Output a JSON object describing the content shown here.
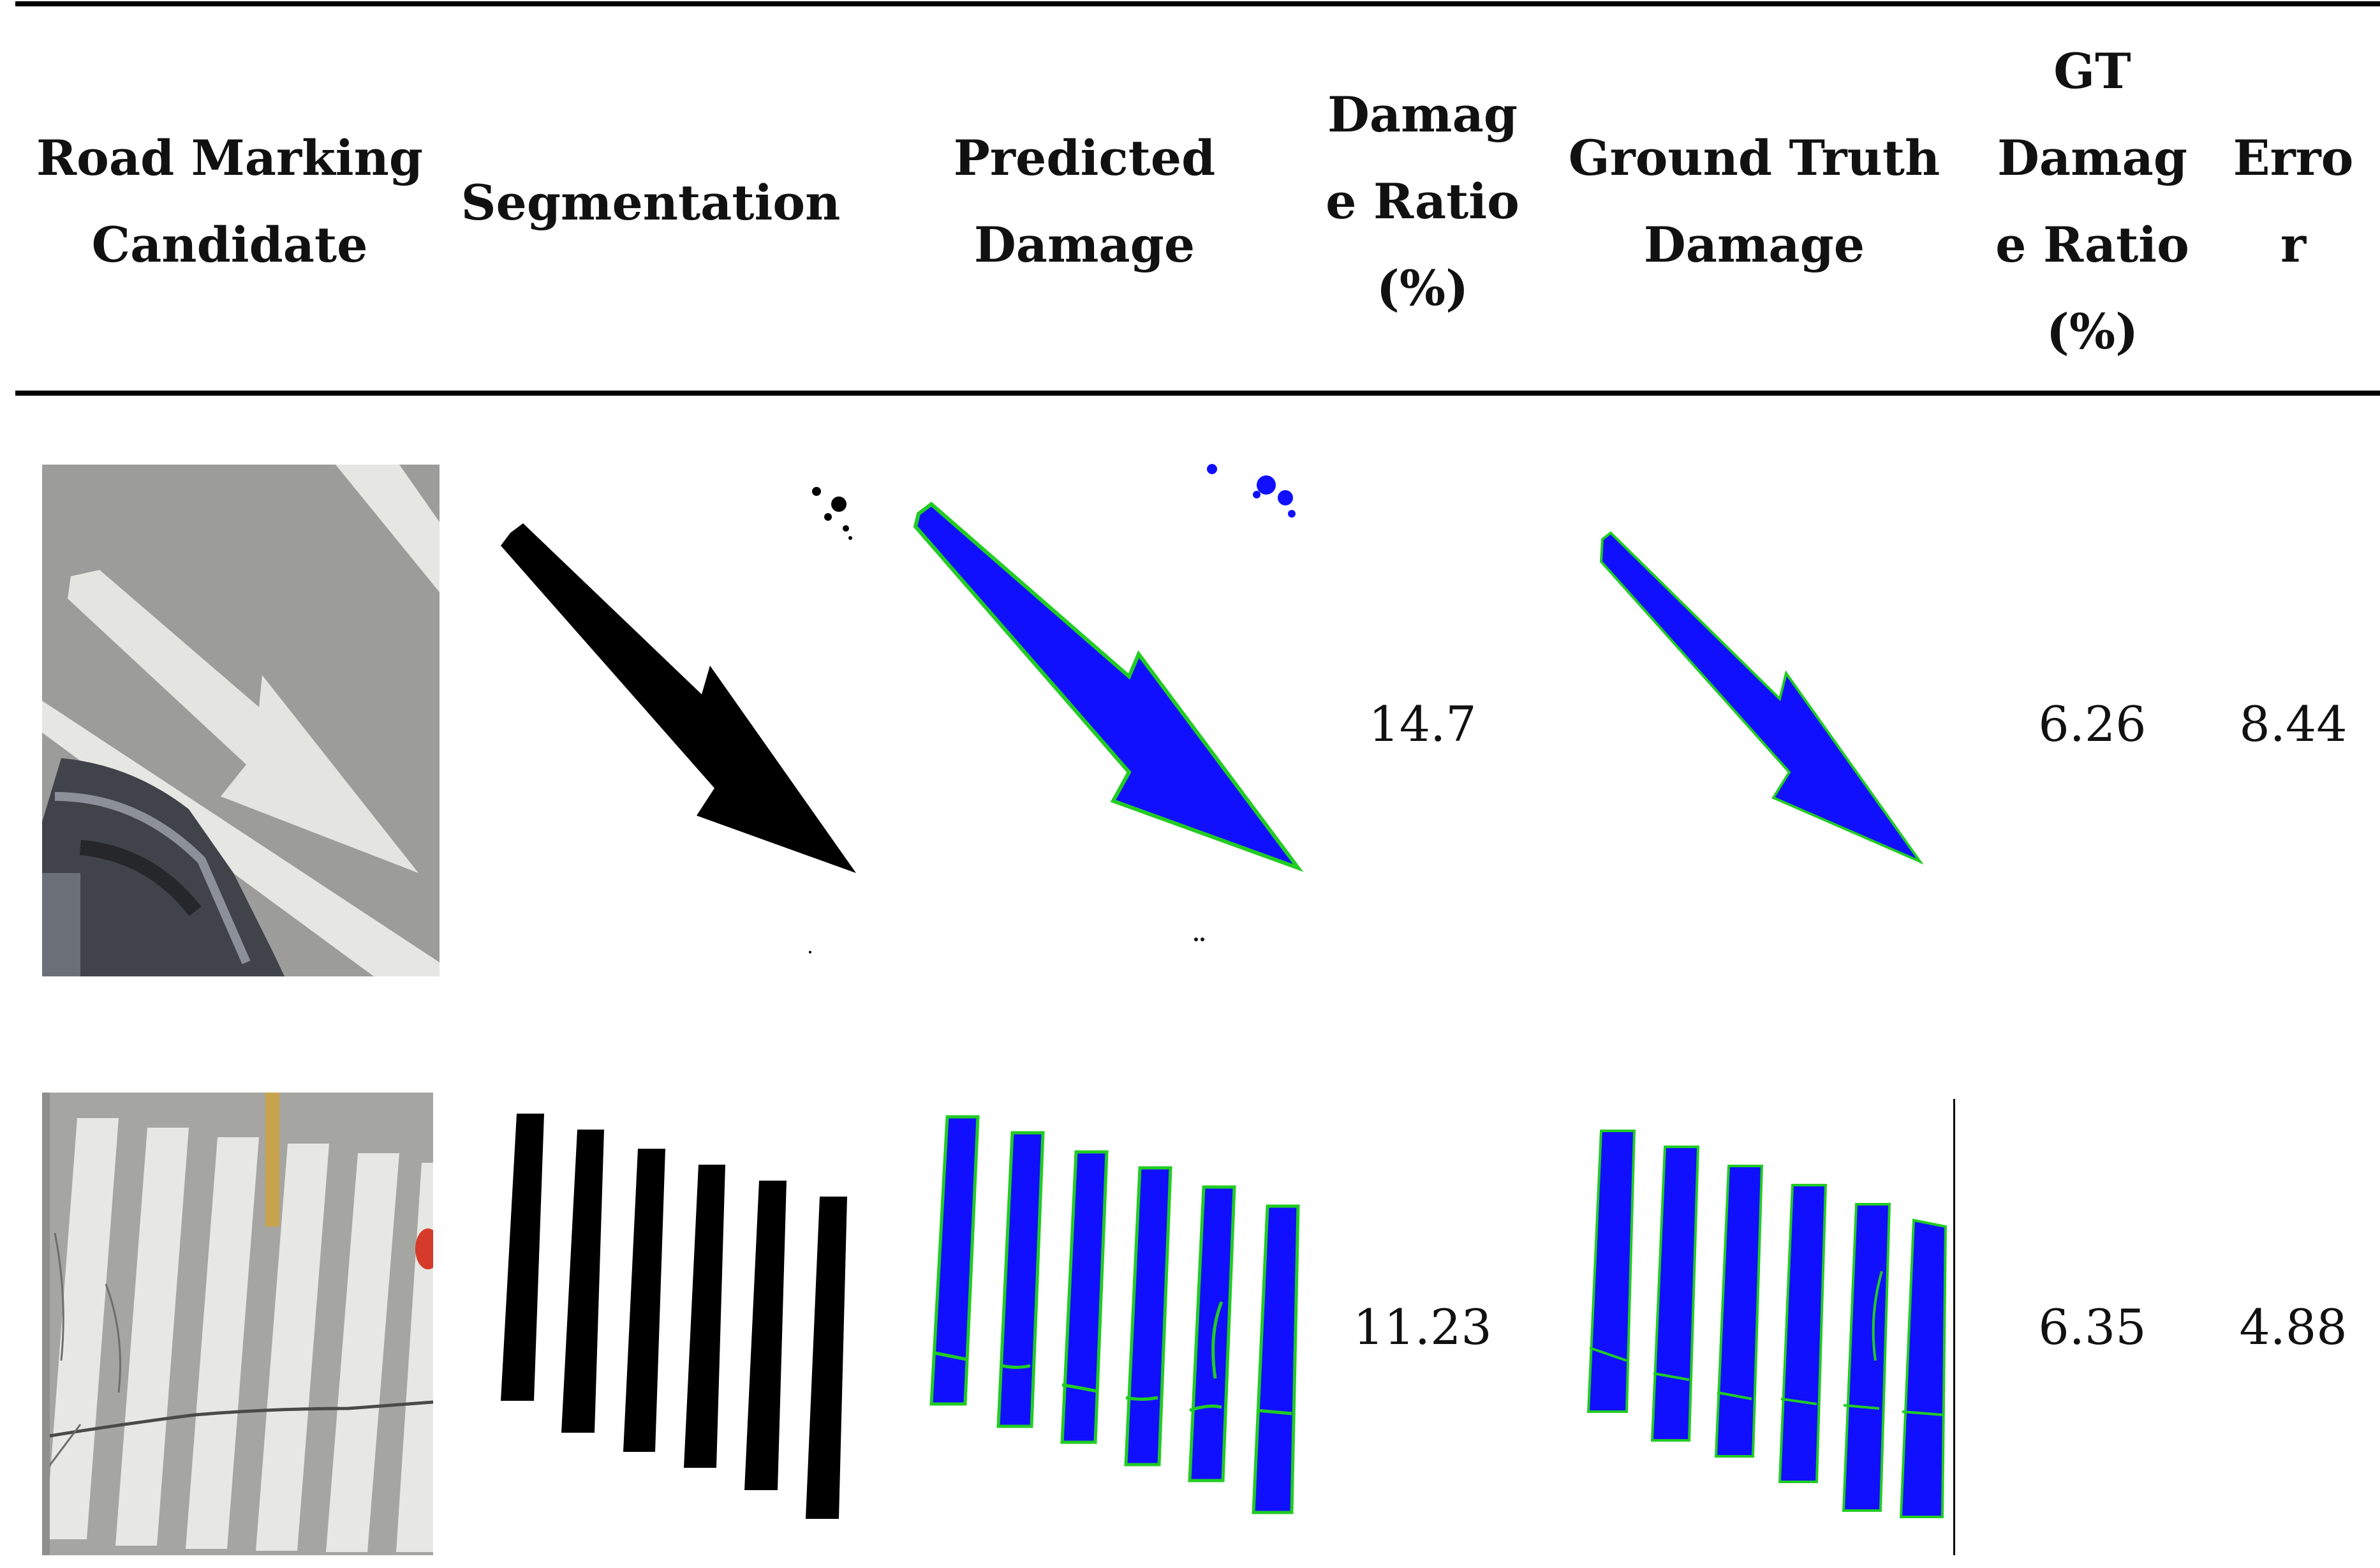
{
  "table": {
    "headers": [
      "Road Marking\nCandidate",
      "Segmentation",
      "Predicted\nDamage",
      "Damag\ne Ratio\n(%)",
      "Ground Truth\nDamage",
      "GT\nDamag\ne Ratio\n(%)",
      "Erro\nr"
    ],
    "rows": [
      {
        "marking_type": "arrow",
        "damage_ratio": "14.7",
        "gt_damage_ratio": "6.26",
        "error": "8.44"
      },
      {
        "marking_type": "crosswalk",
        "damage_ratio": "11.23",
        "gt_damage_ratio": "6.35",
        "error": "4.88"
      }
    ]
  },
  "colors": {
    "damage_mask": "#1010ff",
    "damage_edges": "#22cc22",
    "segmentation": "#000000",
    "asphalt": "#9a9a99",
    "paint": "#e9e9e6"
  }
}
